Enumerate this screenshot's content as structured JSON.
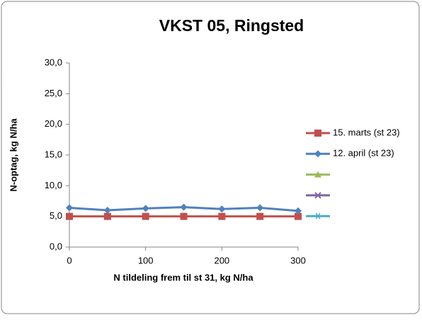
{
  "chart_data": {
    "type": "line",
    "title": "VKST 05, Ringsted",
    "x_label": "N tildeling frem til st 31, kg N/ha",
    "y_label": "N-optag, kg N/ha",
    "x": [
      0,
      50,
      100,
      150,
      200,
      250,
      300
    ],
    "xlim": [
      0,
      300
    ],
    "xticks": [
      0,
      100,
      200,
      300
    ],
    "ylim": [
      0,
      30
    ],
    "yticks": [
      {
        "value": 0,
        "label": "0,0"
      },
      {
        "value": 5,
        "label": "5,0"
      },
      {
        "value": 10,
        "label": "10,0"
      },
      {
        "value": 15,
        "label": "15,0"
      },
      {
        "value": 20,
        "label": "20,0"
      },
      {
        "value": 25,
        "label": "25,0"
      },
      {
        "value": 30,
        "label": "30,0"
      }
    ],
    "grid": false,
    "legend": "right",
    "series": [
      {
        "name": "15. marts (st 23)",
        "color": "#c0504d",
        "marker": "square",
        "values": [
          5.0,
          5.0,
          5.0,
          5.0,
          5.0,
          5.0,
          5.0
        ]
      },
      {
        "name": "12. april (st 23)",
        "color": "#4f81bd",
        "marker": "diamond",
        "values": [
          6.4,
          6.0,
          6.3,
          6.5,
          6.2,
          6.4,
          5.9
        ]
      },
      {
        "color": "#9bbb59",
        "marker": "triangle",
        "values": [
          null,
          null,
          null,
          null,
          null,
          null,
          null
        ]
      },
      {
        "color": "#8064a2",
        "marker": "x",
        "values": [
          null,
          null,
          null,
          null,
          null,
          null,
          null
        ]
      },
      {
        "color": "#4bacc6",
        "marker": "star",
        "values": [
          null,
          null,
          null,
          null,
          null,
          null,
          null
        ]
      }
    ]
  }
}
